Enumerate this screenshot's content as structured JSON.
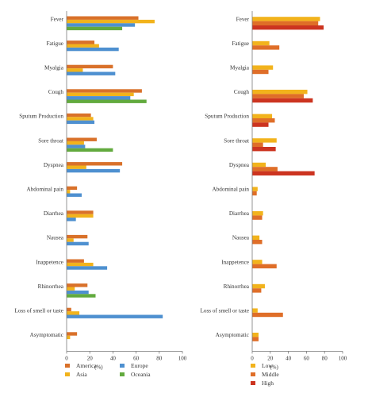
{
  "chart_data": [
    {
      "type": "bar",
      "orientation": "horizontal",
      "categories": [
        "Fever",
        "Fatigue",
        "Myalgia",
        "Cough",
        "Sputum Production",
        "Sore throat",
        "Dyspnea",
        "Abdominal pain",
        "Diarrhea",
        "Nausea",
        "Inappetence",
        "Rhinorrhea",
        "Loss of smell or taste",
        "Asymptomatic"
      ],
      "series": [
        {
          "name": "America",
          "color": "#d9712a",
          "values": [
            62,
            24,
            40,
            65,
            21,
            26,
            48,
            9,
            23,
            18,
            15,
            18,
            4,
            9
          ]
        },
        {
          "name": "Asia",
          "color": "#f2b31c",
          "values": [
            76,
            28,
            14,
            58,
            23,
            15,
            17,
            3,
            23,
            6,
            23,
            7,
            11,
            3
          ]
        },
        {
          "name": "Europe",
          "color": "#4e90d0",
          "values": [
            59,
            45,
            42,
            55,
            24,
            16,
            46,
            13,
            8,
            19,
            35,
            19,
            83,
            null
          ]
        },
        {
          "name": "Oceania",
          "color": "#62aa3e",
          "values": [
            48,
            null,
            null,
            69,
            null,
            40,
            null,
            null,
            null,
            null,
            null,
            25,
            null,
            null
          ]
        }
      ],
      "xlabel": "(%)",
      "xticks": [
        0,
        20,
        40,
        60,
        80,
        100
      ],
      "xlim": [
        0,
        100
      ],
      "grid": false,
      "legend": "bottom"
    },
    {
      "type": "bar",
      "orientation": "horizontal",
      "categories": [
        "Fever",
        "Fatigue",
        "Myalgia",
        "Cough",
        "Sputum Production",
        "Sore throat",
        "Dyspnea",
        "Abdominal pain",
        "Diarrhea",
        "Nausea",
        "Inappetence",
        "Rhinorrhea",
        "Loss of smell or taste",
        "Asymptomatic"
      ],
      "series": [
        {
          "name": "Low",
          "color": "#f2b31c",
          "values": [
            75,
            19,
            23,
            61,
            22,
            27,
            15,
            6,
            12,
            8,
            11,
            14,
            6,
            7
          ]
        },
        {
          "name": "Middle",
          "color": "#df6e28",
          "values": [
            73,
            30,
            18,
            57,
            25,
            12,
            28,
            5,
            11,
            11,
            27,
            10,
            34,
            7
          ]
        },
        {
          "name": "High",
          "color": "#cc3420",
          "values": [
            79,
            null,
            null,
            67,
            18,
            26,
            69,
            null,
            null,
            null,
            null,
            null,
            null,
            null
          ]
        }
      ],
      "xlabel": "(%)",
      "xticks": [
        0,
        20,
        40,
        60,
        80,
        100
      ],
      "xlim": [
        0,
        100
      ],
      "grid": false,
      "legend": "bottom"
    }
  ]
}
